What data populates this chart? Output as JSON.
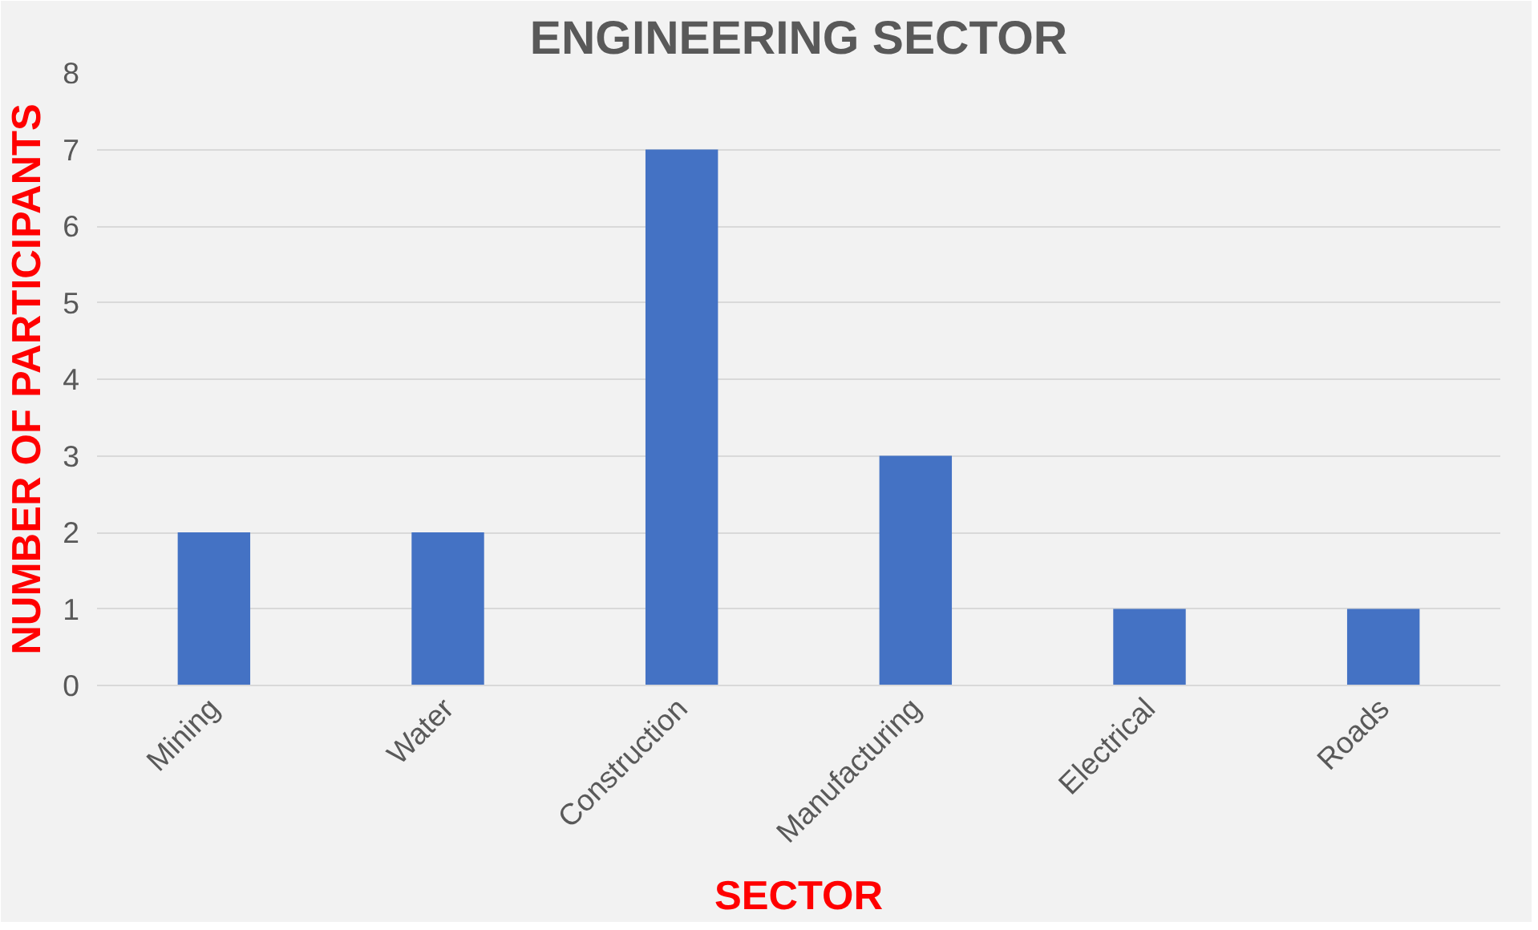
{
  "chart_data": {
    "type": "bar",
    "title": "ENGINEERING SECTOR",
    "xlabel": "SECTOR",
    "ylabel": "NUMBER OF PARTICIPANTS",
    "categories": [
      "Mining",
      "Water",
      "Construction",
      "Manufacturing",
      "Electrical",
      "Roads"
    ],
    "values": [
      2,
      2,
      7,
      3,
      1,
      1
    ],
    "color": "#4472c4",
    "ylim": [
      0,
      8
    ],
    "yticks": [
      0,
      1,
      2,
      3,
      4,
      5,
      6,
      7,
      8
    ],
    "grid": "y"
  }
}
